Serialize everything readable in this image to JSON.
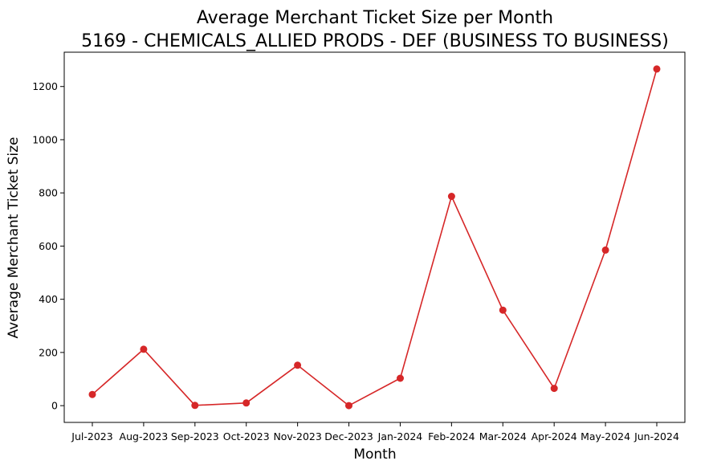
{
  "chart_data": {
    "type": "line",
    "title": [
      "Average Merchant Ticket Size per Month",
      "5169 - CHEMICALS_ALLIED PRODS - DEF (BUSINESS TO BUSINESS)"
    ],
    "xlabel": "Month",
    "ylabel": "Average Merchant Ticket Size",
    "categories": [
      "Jul-2023",
      "Aug-2023",
      "Sep-2023",
      "Oct-2023",
      "Nov-2023",
      "Dec-2023",
      "Jan-2024",
      "Feb-2024",
      "Mar-2024",
      "Apr-2024",
      "May-2024",
      "Jun-2024"
    ],
    "series": [
      {
        "values": [
          42,
          212,
          1,
          10,
          152,
          0,
          103,
          787,
          359,
          65,
          585,
          1266
        ],
        "color": "#d62728",
        "marker": "circle"
      }
    ],
    "ylim": [
      -63,
      1329
    ],
    "yticks": [
      0,
      200,
      400,
      600,
      800,
      1000,
      1200
    ],
    "grid": false,
    "legend": "none"
  }
}
